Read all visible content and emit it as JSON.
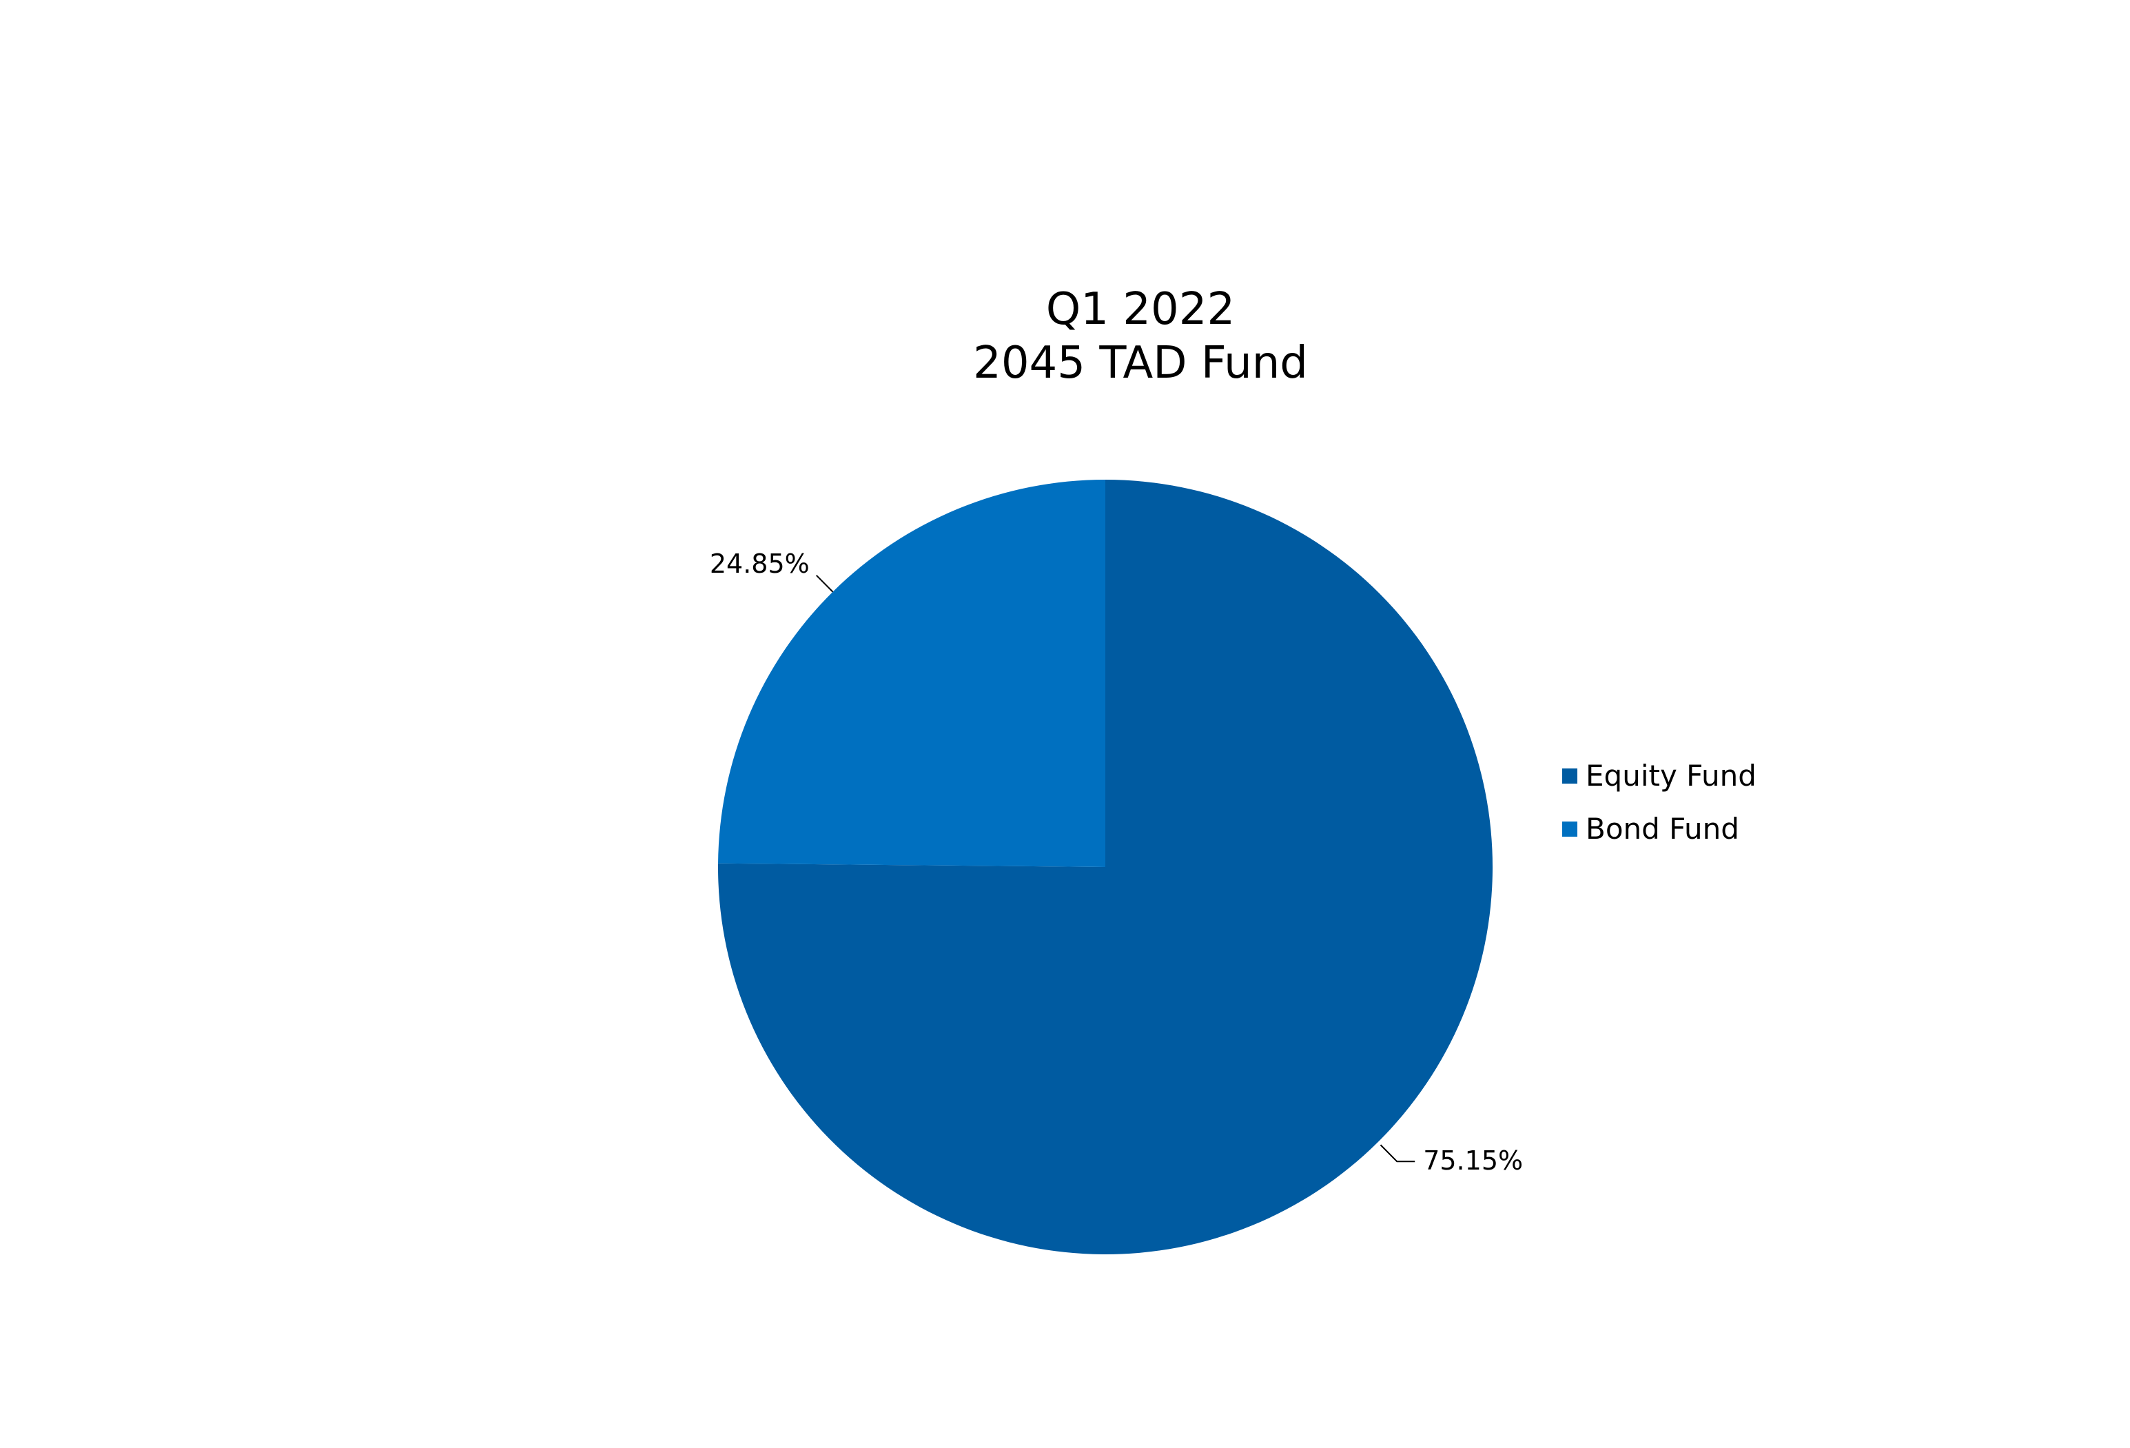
{
  "chart_data": {
    "type": "pie",
    "title": [
      "Q1 2022",
      "2045 TAD Fund"
    ],
    "slices": [
      {
        "name": "Equity Fund",
        "value": 75.15,
        "label": "75.15%",
        "color": "#005ba1"
      },
      {
        "name": "Bond Fund",
        "value": 24.85,
        "label": "24.85%",
        "color": "#0070c0"
      }
    ],
    "legend_position": "right",
    "start_angle_deg": 0,
    "direction": "clockwise"
  }
}
